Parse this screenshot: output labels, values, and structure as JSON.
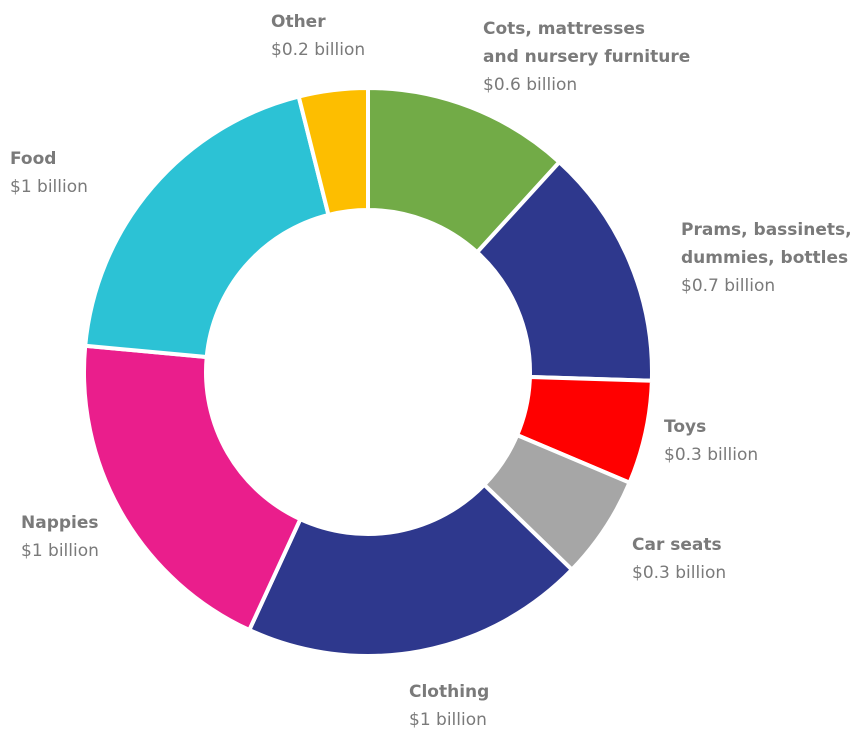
{
  "chart_data": {
    "type": "pie",
    "title": "",
    "slices": [
      {
        "name": "Cots, mattresses and nursery furniture",
        "label_lines": [
          "Cots, mattresses",
          "and nursery furniture"
        ],
        "value_label": "$0.6 billion",
        "value": 0.6,
        "color": "#72ab47"
      },
      {
        "name": "Prams, bassinets, dummies, bottles",
        "label_lines": [
          "Prams, bassinets,",
          "dummies, bottles"
        ],
        "value_label": "$0.7 billion",
        "value": 0.7,
        "color": "#2e388d"
      },
      {
        "name": "Toys",
        "label_lines": [
          "Toys"
        ],
        "value_label": "$0.3 billion",
        "value": 0.3,
        "color": "#ff0000"
      },
      {
        "name": "Car seats",
        "label_lines": [
          "Car seats"
        ],
        "value_label": "$0.3 billion",
        "value": 0.3,
        "color": "#a6a6a6"
      },
      {
        "name": "Clothing",
        "label_lines": [
          "Clothing"
        ],
        "value_label": "$1 billion",
        "value": 1.0,
        "color": "#2e388d"
      },
      {
        "name": "Nappies",
        "label_lines": [
          "Nappies"
        ],
        "value_label": "$1 billion",
        "value": 1.0,
        "color": "#ea1e8c"
      },
      {
        "name": "Food",
        "label_lines": [
          "Food"
        ],
        "value_label": "$1 billion",
        "value": 1.0,
        "color": "#2cc2d5"
      },
      {
        "name": "Other",
        "label_lines": [
          "Other"
        ],
        "value_label": "$0.2 billion",
        "value": 0.2,
        "color": "#fdbe00"
      }
    ],
    "legend": "none",
    "donut": true
  }
}
